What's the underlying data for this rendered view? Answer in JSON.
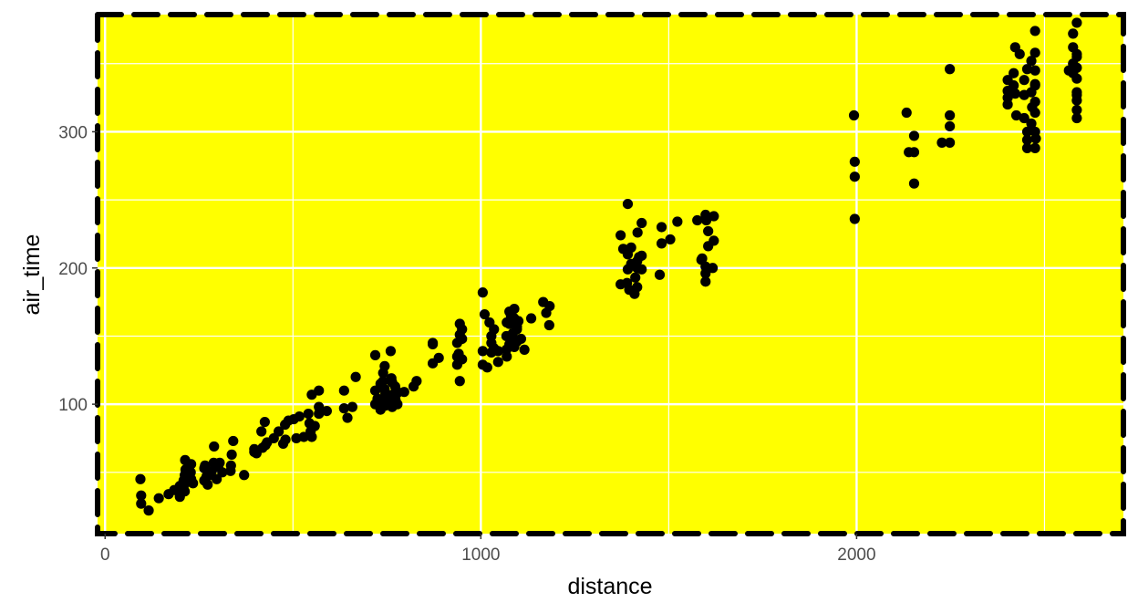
{
  "chart_data": {
    "type": "scatter",
    "title": "",
    "xlabel": "distance",
    "ylabel": "air_time",
    "xlim": [
      -20,
      2710
    ],
    "ylim": [
      5,
      386
    ],
    "xticks": [
      0,
      1000,
      2000
    ],
    "xtick_labels": [
      "0",
      "1000",
      "2000"
    ],
    "yticks": [
      100,
      200,
      300
    ],
    "ytick_labels": [
      "100",
      "200",
      "300"
    ],
    "grid": true,
    "legend": "none",
    "colors": {
      "panel_background": "#ffff00",
      "panel_border": "#000000",
      "grid_major": "#ffffff",
      "grid_minor": "#ffffff",
      "points": "#000000",
      "tick_label": "#4d4d4d"
    },
    "series": [
      {
        "values": [
          [
            94,
            45
          ],
          [
            96,
            33
          ],
          [
            96,
            27
          ],
          [
            116,
            22
          ],
          [
            143,
            31
          ],
          [
            169,
            34
          ],
          [
            184,
            37
          ],
          [
            199,
            40
          ],
          [
            199,
            34
          ],
          [
            199,
            32
          ],
          [
            209,
            44
          ],
          [
            209,
            38
          ],
          [
            212,
            36
          ],
          [
            212,
            48
          ],
          [
            213,
            59
          ],
          [
            214,
            52
          ],
          [
            220,
            43
          ],
          [
            228,
            50
          ],
          [
            229,
            45
          ],
          [
            229,
            56
          ],
          [
            234,
            42
          ],
          [
            264,
            44
          ],
          [
            264,
            53
          ],
          [
            266,
            55
          ],
          [
            270,
            47
          ],
          [
            273,
            41
          ],
          [
            280,
            48
          ],
          [
            284,
            51
          ],
          [
            289,
            57
          ],
          [
            290,
            69
          ],
          [
            297,
            45
          ],
          [
            301,
            54
          ],
          [
            305,
            57
          ],
          [
            312,
            50
          ],
          [
            334,
            51
          ],
          [
            335,
            55
          ],
          [
            337,
            63
          ],
          [
            341,
            73
          ],
          [
            370,
            48
          ],
          [
            397,
            65
          ],
          [
            397,
            67
          ],
          [
            403,
            64
          ],
          [
            416,
            80
          ],
          [
            419,
            68
          ],
          [
            425,
            87
          ],
          [
            427,
            70
          ],
          [
            431,
            72
          ],
          [
            449,
            75
          ],
          [
            462,
            80
          ],
          [
            474,
            71
          ],
          [
            479,
            85
          ],
          [
            480,
            74
          ],
          [
            488,
            88
          ],
          [
            502,
            89
          ],
          [
            509,
            75
          ],
          [
            517,
            91
          ],
          [
            529,
            76
          ],
          [
            541,
            93
          ],
          [
            544,
            86
          ],
          [
            547,
            80
          ],
          [
            550,
            107
          ],
          [
            550,
            76
          ],
          [
            558,
            84
          ],
          [
            569,
            110
          ],
          [
            569,
            98
          ],
          [
            569,
            93
          ],
          [
            590,
            95
          ],
          [
            636,
            110
          ],
          [
            636,
            97
          ],
          [
            645,
            90
          ],
          [
            658,
            98
          ],
          [
            667,
            120
          ],
          [
            719,
            100
          ],
          [
            719,
            110
          ],
          [
            719,
            136
          ],
          [
            725,
            104
          ],
          [
            733,
            96
          ],
          [
            733,
            115
          ],
          [
            740,
            104
          ],
          [
            740,
            117
          ],
          [
            740,
            123
          ],
          [
            740,
            102
          ],
          [
            744,
            128
          ],
          [
            744,
            111
          ],
          [
            746,
            99
          ],
          [
            746,
            108
          ],
          [
            760,
            139
          ],
          [
            762,
            106
          ],
          [
            762,
            99
          ],
          [
            762,
            119
          ],
          [
            764,
            116
          ],
          [
            764,
            98
          ],
          [
            765,
            102
          ],
          [
            765,
            107
          ],
          [
            771,
            101
          ],
          [
            772,
            113
          ],
          [
            773,
            103
          ],
          [
            775,
            110
          ],
          [
            777,
            108
          ],
          [
            778,
            100
          ],
          [
            796,
            109
          ],
          [
            821,
            113
          ],
          [
            829,
            117
          ],
          [
            872,
            145
          ],
          [
            872,
            144
          ],
          [
            872,
            130
          ],
          [
            888,
            134
          ],
          [
            937,
            129
          ],
          [
            937,
            145
          ],
          [
            937,
            135
          ],
          [
            941,
            137
          ],
          [
            944,
            117
          ],
          [
            944,
            151
          ],
          [
            944,
            159
          ],
          [
            950,
            155
          ],
          [
            950,
            148
          ],
          [
            950,
            133
          ],
          [
            1005,
            139
          ],
          [
            1005,
            129
          ],
          [
            1005,
            182
          ],
          [
            1010,
            166
          ],
          [
            1017,
            127
          ],
          [
            1023,
            160
          ],
          [
            1028,
            150
          ],
          [
            1028,
            145
          ],
          [
            1028,
            138
          ],
          [
            1035,
            155
          ],
          [
            1035,
            141
          ],
          [
            1046,
            131
          ],
          [
            1046,
            139
          ],
          [
            1068,
            150
          ],
          [
            1068,
            140
          ],
          [
            1069,
            135
          ],
          [
            1069,
            160
          ],
          [
            1076,
            144
          ],
          [
            1076,
            168
          ],
          [
            1076,
            159
          ],
          [
            1080,
            148
          ],
          [
            1080,
            165
          ],
          [
            1085,
            152
          ],
          [
            1089,
            170
          ],
          [
            1089,
            163
          ],
          [
            1089,
            142
          ],
          [
            1096,
            146
          ],
          [
            1096,
            157
          ],
          [
            1096,
            155
          ],
          [
            1100,
            161
          ],
          [
            1107,
            148
          ],
          [
            1116,
            140
          ],
          [
            1134,
            163
          ],
          [
            1166,
            175
          ],
          [
            1174,
            167
          ],
          [
            1182,
            158
          ],
          [
            1183,
            172
          ],
          [
            1372,
            188
          ],
          [
            1372,
            224
          ],
          [
            1379,
            214
          ],
          [
            1389,
            189
          ],
          [
            1391,
            247
          ],
          [
            1391,
            210
          ],
          [
            1391,
            199
          ],
          [
            1395,
            184
          ],
          [
            1400,
            203
          ],
          [
            1400,
            215
          ],
          [
            1409,
            181
          ],
          [
            1411,
            193
          ],
          [
            1416,
            186
          ],
          [
            1416,
            205
          ],
          [
            1416,
            200
          ],
          [
            1417,
            226
          ],
          [
            1421,
            208
          ],
          [
            1428,
            233
          ],
          [
            1428,
            209
          ],
          [
            1428,
            199
          ],
          [
            1476,
            195
          ],
          [
            1481,
            218
          ],
          [
            1481,
            230
          ],
          [
            1504,
            221
          ],
          [
            1523,
            234
          ],
          [
            1576,
            235
          ],
          [
            1587,
            206
          ],
          [
            1589,
            207
          ],
          [
            1598,
            239
          ],
          [
            1598,
            201
          ],
          [
            1598,
            190
          ],
          [
            1598,
            196
          ],
          [
            1600,
            235
          ],
          [
            1605,
            227
          ],
          [
            1605,
            216
          ],
          [
            1617,
            200
          ],
          [
            1620,
            220
          ],
          [
            1620,
            238
          ],
          [
            1993,
            312
          ],
          [
            1995,
            278
          ],
          [
            1995,
            267
          ],
          [
            1995,
            236
          ],
          [
            2133,
            314
          ],
          [
            2139,
            285
          ],
          [
            2153,
            285
          ],
          [
            2153,
            297
          ],
          [
            2153,
            262
          ],
          [
            2227,
            292
          ],
          [
            2248,
            292
          ],
          [
            2248,
            304
          ],
          [
            2248,
            312
          ],
          [
            2248,
            346
          ],
          [
            2402,
            338
          ],
          [
            2402,
            330
          ],
          [
            2402,
            325
          ],
          [
            2402,
            320
          ],
          [
            2418,
            343
          ],
          [
            2418,
            334
          ],
          [
            2422,
            362
          ],
          [
            2422,
            328
          ],
          [
            2425,
            312
          ],
          [
            2434,
            357
          ],
          [
            2446,
            327
          ],
          [
            2446,
            338
          ],
          [
            2446,
            310
          ],
          [
            2454,
            300
          ],
          [
            2454,
            288
          ],
          [
            2454,
            294
          ],
          [
            2454,
            346
          ],
          [
            2465,
            352
          ],
          [
            2465,
            329
          ],
          [
            2465,
            306
          ],
          [
            2467,
            318
          ],
          [
            2475,
            374
          ],
          [
            2475,
            358
          ],
          [
            2475,
            345
          ],
          [
            2475,
            334
          ],
          [
            2475,
            322
          ],
          [
            2475,
            300
          ],
          [
            2477,
            295
          ],
          [
            2475,
            288
          ],
          [
            2475,
            335
          ],
          [
            2475,
            314
          ],
          [
            2565,
            345
          ],
          [
            2576,
            372
          ],
          [
            2576,
            362
          ],
          [
            2576,
            350
          ],
          [
            2576,
            343
          ],
          [
            2586,
            339
          ],
          [
            2586,
            327
          ],
          [
            2586,
            316
          ],
          [
            2586,
            347
          ],
          [
            2586,
            355
          ],
          [
            2586,
            310
          ],
          [
            2586,
            380
          ],
          [
            2586,
            323
          ],
          [
            2586,
            329
          ],
          [
            2586,
            357
          ]
        ]
      }
    ]
  }
}
